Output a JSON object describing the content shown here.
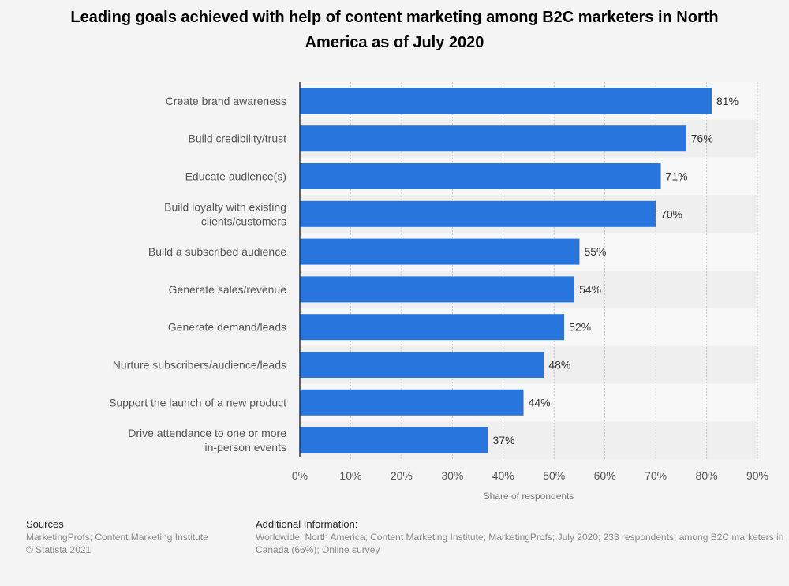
{
  "chart_data": {
    "type": "bar",
    "orientation": "horizontal",
    "title": "Leading goals achieved with help of content marketing among B2C marketers in North America as of July 2020",
    "xlabel": "Share of respondents",
    "ylabel": "",
    "xlim": [
      0,
      90
    ],
    "x_ticks": [
      "0%",
      "10%",
      "20%",
      "30%",
      "40%",
      "50%",
      "60%",
      "70%",
      "80%",
      "90%"
    ],
    "grid": "vertical dashed",
    "bar_color": "#2876dd",
    "categories": [
      "Create brand awareness",
      "Build credibility/trust",
      "Educate audience(s)",
      "Build loyalty with existing clients/customers",
      "Build a subscribed audience",
      "Generate sales/revenue",
      "Generate demand/leads",
      "Nurture subscribers/audience/leads",
      "Support the launch of a new product",
      "Drive attendance to one or more in-person events"
    ],
    "values": [
      81,
      76,
      71,
      70,
      55,
      54,
      52,
      48,
      44,
      37
    ],
    "value_labels": [
      "81%",
      "76%",
      "71%",
      "70%",
      "55%",
      "54%",
      "52%",
      "48%",
      "44%",
      "37%"
    ]
  },
  "footer": {
    "sources_heading": "Sources",
    "sources_lines": [
      "MarketingProfs; Content Marketing Institute",
      "© Statista 2021"
    ],
    "info_heading": "Additional Information:",
    "info_lines": [
      "Worldwide; North America; Content Marketing Institute; MarketingProfs; July 2020; 233 respondents; among B2C marketers in",
      "Canada (66%); Online survey"
    ]
  }
}
